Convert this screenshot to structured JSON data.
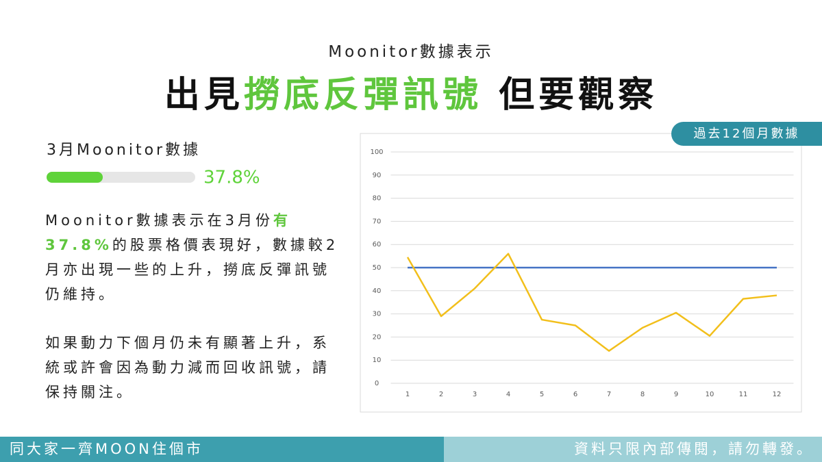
{
  "header": {
    "kicker": "Moonitor數據表示",
    "title_parts": [
      "出見",
      "撈底反彈訊號",
      "但要觀察"
    ]
  },
  "body": {
    "paragraph1_parts": [
      "Moonitor數據表示在3月份",
      "有37.8%",
      "的股票格價表現好，數據較2月亦出現一些的上升，撈底反彈訊號仍維持。"
    ],
    "paragraph2": "如果動力下個月仍未有顯著上升，系統或許會因為動力減而回收訊號，請保持關注。"
  },
  "chart_data": [
    {
      "type": "progress",
      "title": "3月Moonitor數據",
      "values": [
        37.8
      ],
      "value_labels": [
        "37.8%"
      ],
      "xlim": [
        0,
        100
      ],
      "color": "#5fd33a"
    },
    {
      "type": "line",
      "subtitle": "過去12個月數據",
      "categories": [
        "1",
        "2",
        "3",
        "4",
        "5",
        "6",
        "7",
        "8",
        "9",
        "10",
        "11",
        "12"
      ],
      "series": [
        {
          "color": "#4472c4",
          "values": [
            50,
            50,
            50,
            50,
            50,
            50,
            50,
            50,
            50,
            50,
            50,
            50
          ]
        },
        {
          "color": "#f2bf1b",
          "values": [
            54.5,
            29,
            41,
            56,
            27.5,
            25,
            14,
            24,
            30.5,
            20.5,
            36.5,
            38
          ]
        }
      ],
      "ylim": [
        0,
        100
      ],
      "yticks": [
        0,
        10,
        20,
        30,
        40,
        50,
        60,
        70,
        80,
        90,
        100
      ],
      "grid": true
    }
  ],
  "footer": {
    "left": "同大家一齊MOON住個市",
    "right": "資料只限內部傳閱，請勿轉發。"
  }
}
